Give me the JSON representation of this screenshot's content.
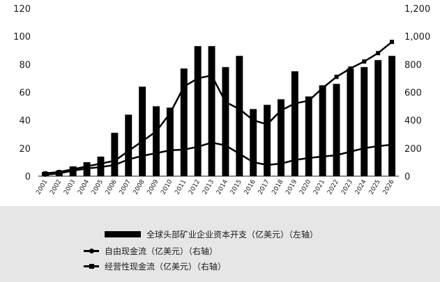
{
  "chart_data": {
    "type": "bar",
    "categories": [
      "2001",
      "2002",
      "2003",
      "2004",
      "2005",
      "2006",
      "2007",
      "2008",
      "2009",
      "2010",
      "2011",
      "2012",
      "2013",
      "2014",
      "2015",
      "2016",
      "2017",
      "2018",
      "2019",
      "2020",
      "2021",
      "2022",
      "2023",
      "2024",
      "2025",
      "2026"
    ],
    "left_axis": {
      "ylim": [
        0,
        120
      ],
      "ticks": [
        "0",
        "20",
        "40",
        "60",
        "80",
        "100",
        "120"
      ]
    },
    "right_axis": {
      "ylim": [
        0,
        1200
      ],
      "ticks": [
        "0",
        "200",
        "400",
        "600",
        "800",
        "1,000",
        "1,200"
      ]
    },
    "series": [
      {
        "name": "全球头部矿业企业资本开支（亿美元）（左轴）",
        "kind": "bar",
        "axis": "left",
        "values": [
          3,
          4,
          7,
          10,
          14,
          31,
          44,
          64,
          50,
          49,
          77,
          93,
          93,
          78,
          86,
          48,
          51,
          55,
          75,
          57,
          65,
          66,
          77,
          78,
          83,
          86
        ]
      },
      {
        "name": "自由现金流（亿美元）（右轴）",
        "kind": "line",
        "marker": "circle",
        "axis": "right",
        "values": [
          10,
          20,
          40,
          55,
          65,
          80,
          120,
          145,
          165,
          185,
          190,
          210,
          240,
          220,
          160,
          100,
          80,
          90,
          115,
          130,
          140,
          150,
          175,
          200,
          215,
          225
        ]
      },
      {
        "name": "经营性现金流（亿美元）（右轴）",
        "kind": "line",
        "marker": "square",
        "axis": "right",
        "values": [
          20,
          30,
          50,
          70,
          90,
          110,
          180,
          250,
          320,
          450,
          640,
          700,
          720,
          530,
          480,
          400,
          370,
          470,
          520,
          540,
          630,
          710,
          770,
          820,
          880,
          960
        ]
      }
    ]
  },
  "legend": {
    "bar_label": "全球头部矿业企业资本开支（亿美元）（左轴）",
    "line1_label": "自由现金流（亿美元）（右轴）",
    "line2_label": "经营性现金流（亿美元）（右轴）"
  }
}
